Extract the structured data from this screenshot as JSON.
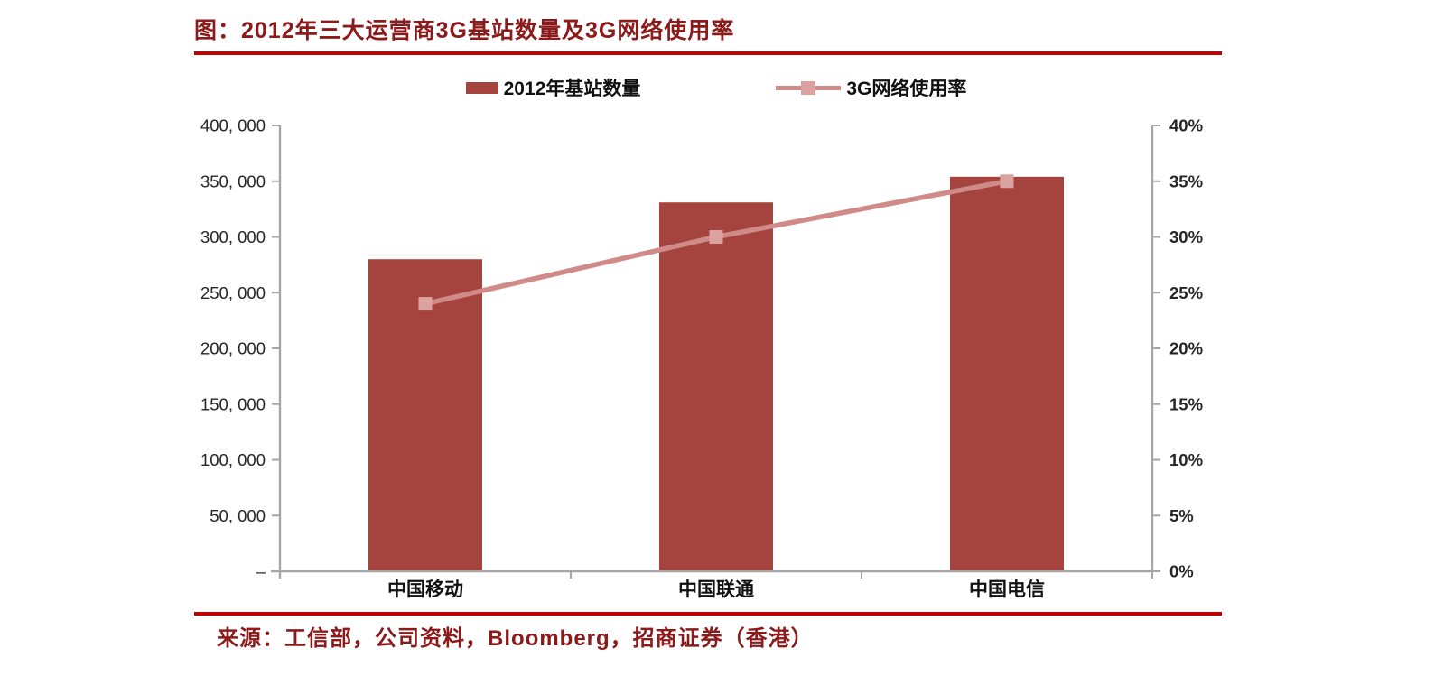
{
  "header": {
    "title": "图：2012年三大运营商3G基站数量及3G网络使用率",
    "rule_color": "#C00000",
    "title_color": "#8C1A1A"
  },
  "legend": [
    {
      "label": "2012年基站数量",
      "type": "bar",
      "color": "#A5443F"
    },
    {
      "label": "3G网络使用率",
      "type": "line",
      "color": "#D08A88",
      "marker_color": "#DCA29F"
    }
  ],
  "chart_data": {
    "type": "bar",
    "subtype": "bar+line combo, dual axis",
    "title": "图：2012年三大运营商3G基站数量及3G网络使用率",
    "categories": [
      "中国移动",
      "中国联通",
      "中国电信"
    ],
    "series": [
      {
        "name": "2012年基站数量",
        "type": "bar",
        "axis": "left",
        "values": [
          280000,
          331000,
          354000
        ],
        "color": "#A5443F"
      },
      {
        "name": "3G网络使用率",
        "type": "line",
        "axis": "right",
        "values": [
          24,
          30,
          35
        ],
        "unit": "%",
        "color": "#D08A88",
        "marker_color": "#DCA29F",
        "marker": "square"
      }
    ],
    "left_axis": {
      "min": 0,
      "max": 400000,
      "step": 50000,
      "tick_labels_bottom_to_top": [
        "–",
        "50, 000",
        "100, 000",
        "150, 000",
        "200, 000",
        "250, 000",
        "300, 000",
        "350, 000",
        "400, 000"
      ]
    },
    "right_axis": {
      "min": 0,
      "max": 40,
      "step": 5,
      "tick_labels_bottom_to_top": [
        "0%",
        "5%",
        "10%",
        "15%",
        "20%",
        "25%",
        "30%",
        "35%",
        "40%"
      ]
    },
    "grid": false,
    "legend_position": "top",
    "axis_color": "#A6A6A6",
    "tick_label_color": "#262626"
  },
  "footer": {
    "source": "来源：工信部，公司资料，Bloomberg，招商证券（香港）",
    "rule_color": "#C00000",
    "text_color": "#8C1A1A"
  }
}
